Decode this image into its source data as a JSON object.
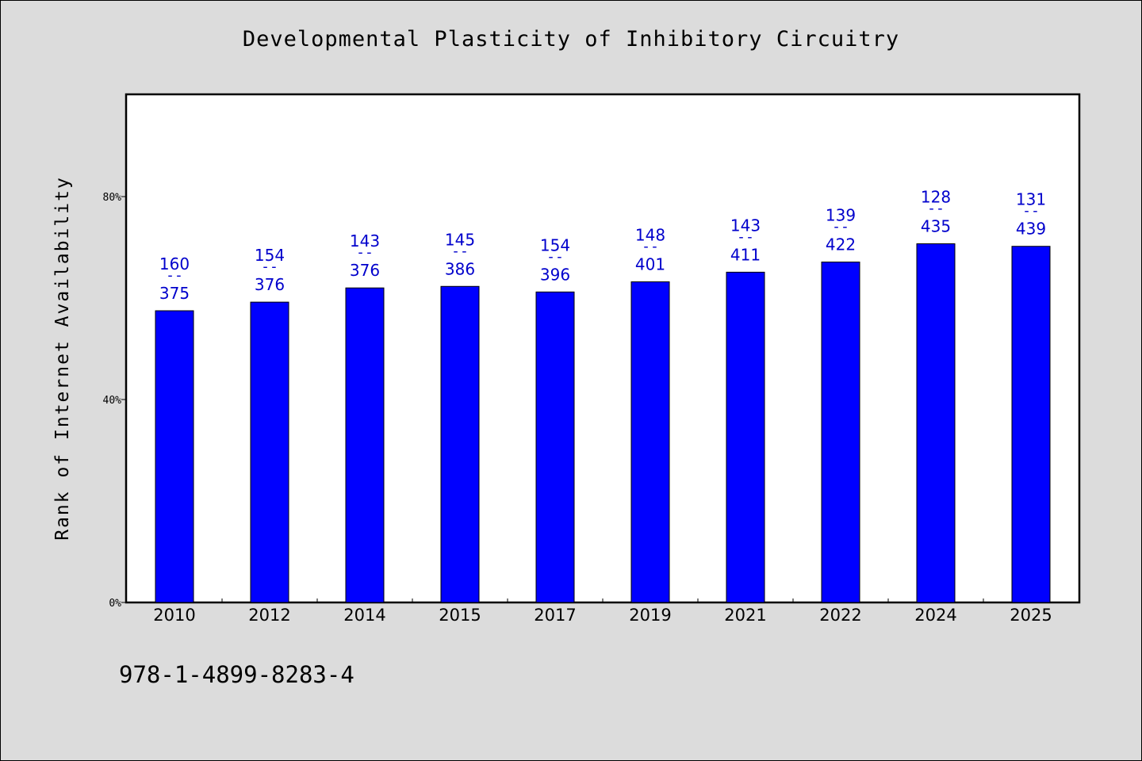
{
  "chart_data": {
    "type": "bar",
    "title": "Developmental Plasticity of Inhibitory Circuitry",
    "ylabel": "Rank of Internet Availability",
    "xlabel": "",
    "categories": [
      "2010",
      "2012",
      "2014",
      "2015",
      "2017",
      "2019",
      "2021",
      "2022",
      "2024",
      "2025"
    ],
    "values": [
      57.5,
      59.2,
      62.0,
      62.3,
      61.2,
      63.2,
      65.1,
      67.1,
      70.7,
      70.2
    ],
    "annotations": [
      {
        "top": "160",
        "sep": "--",
        "bottom": "375"
      },
      {
        "top": "154",
        "sep": "--",
        "bottom": "376"
      },
      {
        "top": "143",
        "sep": "--",
        "bottom": "376"
      },
      {
        "top": "145",
        "sep": "--",
        "bottom": "386"
      },
      {
        "top": "154",
        "sep": "--",
        "bottom": "396"
      },
      {
        "top": "148",
        "sep": "--",
        "bottom": "401"
      },
      {
        "top": "143",
        "sep": "--",
        "bottom": "411"
      },
      {
        "top": "139",
        "sep": "--",
        "bottom": "422"
      },
      {
        "top": "128",
        "sep": "--",
        "bottom": "435"
      },
      {
        "top": "131",
        "sep": "--",
        "bottom": "439"
      }
    ],
    "ylim": [
      0,
      100
    ],
    "yticks": [
      0,
      40,
      80
    ],
    "ytick_labels": [
      "0%",
      "40%",
      "80%"
    ],
    "grid": false,
    "bar_color": "#0000ff",
    "label_color": "#0000cc"
  },
  "footnote": "978-1-4899-8283-4"
}
